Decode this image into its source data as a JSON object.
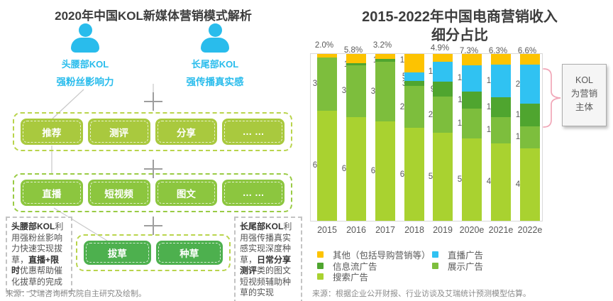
{
  "left": {
    "title": "2020年中国KOL新媒体营销模式解析",
    "actors": [
      {
        "name": "头腰部KOL",
        "trait": "强粉丝影响力"
      },
      {
        "name": "长尾部KOL",
        "trait": "强传播真实感"
      }
    ],
    "plus": "+",
    "rows": [
      {
        "items": [
          "推荐",
          "测评",
          "分享",
          "… …"
        ]
      },
      {
        "items": [
          "直播",
          "短视频",
          "图文",
          "… …"
        ]
      },
      {
        "items": [
          "拔草",
          "种草"
        ]
      }
    ],
    "notes": [
      {
        "runs": [
          [
            "头腰部KOL",
            true
          ],
          [
            "利用强粉丝影响力快速实现拔草，",
            false
          ],
          [
            "直播+限时",
            true
          ],
          [
            "优惠帮助催化拔草的完成",
            false
          ]
        ]
      },
      {
        "runs": [
          [
            "长尾部KOL",
            true
          ],
          [
            "利用强传播真实感实现深度种草，",
            false
          ],
          [
            "日常分享测评",
            true
          ],
          [
            "类的图文短视频辅助种草的实现",
            false
          ]
        ]
      }
    ],
    "source": "来源：艾瑞咨询研究院自主研究及绘制。"
  },
  "right": {
    "title_line1": "2015-2022年中国电商营销收入",
    "title_line2": "细分占比",
    "callout": {
      "lines": [
        "KOL",
        "为营销",
        "主体"
      ]
    },
    "source": "来源：根据企业公开财报、行业访谈及艾瑞统计预测模型估算。"
  },
  "chart_data": {
    "type": "bar",
    "stacked": true,
    "percent": true,
    "title": "2015-2022年中国电商营销收入细分占比",
    "unit": "%",
    "categories": [
      "2015",
      "2016",
      "2017",
      "2018",
      "2019",
      "2020e",
      "2021e",
      "2022e"
    ],
    "series": [
      {
        "name": "其他（包括导购营销等）",
        "color": "#fdc301",
        "values": [
          2.0,
          5.8,
          3.2,
          12.1,
          4.9,
          7.3,
          6.3,
          6.6
        ]
      },
      {
        "name": "直播广告",
        "color": "#30c2f2",
        "values": [
          0,
          0,
          0,
          5.6,
          13.1,
          17.4,
          19.5,
          23.3
        ]
      },
      {
        "name": "信息流广告",
        "color": "#4fa52f",
        "values": [
          0,
          1.0,
          1.8,
          3.1,
          9.9,
          11.7,
          12.0,
          13.5
        ]
      },
      {
        "name": "展示广告",
        "color": "#7dbe3d",
        "values": [
          32.3,
          31.8,
          36.7,
          27.4,
          23.3,
          19.7,
          15.8,
          13.2
        ]
      },
      {
        "name": "搜索广告",
        "color": "#a9d230",
        "values": [
          66.6,
          63.4,
          61.0,
          60.6,
          57.2,
          54.4,
          46.4,
          43.5
        ]
      }
    ],
    "legend_columns": [
      [
        0,
        2,
        4
      ],
      [
        1,
        3
      ]
    ],
    "legend_position": "bottom",
    "grid": false,
    "ylim": [
      0,
      100
    ]
  }
}
